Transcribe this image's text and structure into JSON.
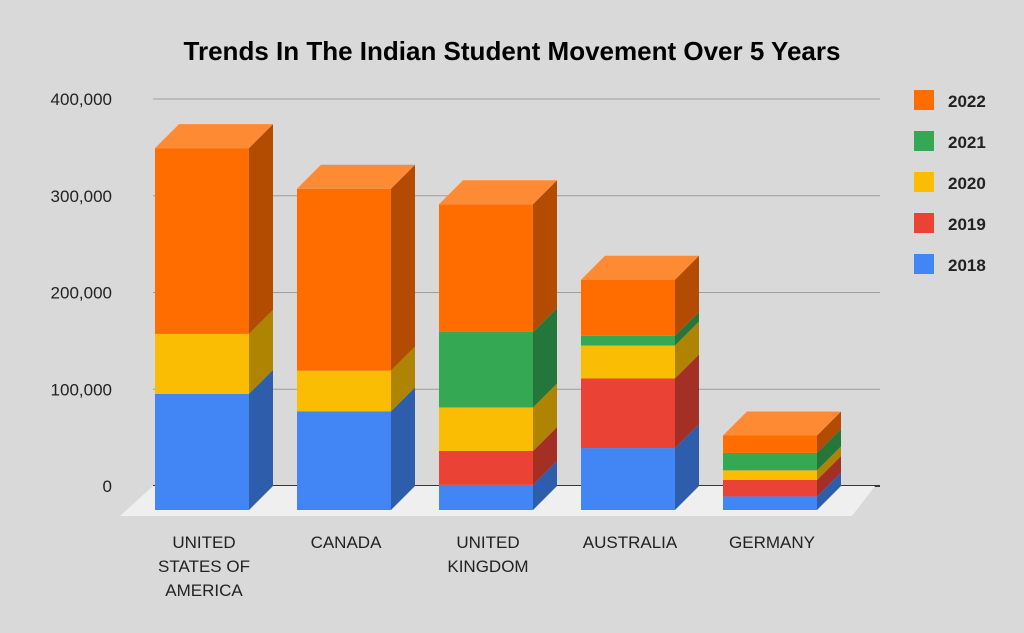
{
  "chart_data": {
    "type": "bar",
    "stacked": true,
    "style": "3d",
    "title": "Trends In The Indian Student Movement Over 5 Years",
    "xlabel": "",
    "ylabel": "",
    "ylim": [
      0,
      400000
    ],
    "yticks": [
      "0",
      "100,000",
      "200,000",
      "300,000",
      "400,000"
    ],
    "ytick_values": [
      0,
      100000,
      200000,
      300000,
      400000
    ],
    "grid": true,
    "legend_position": "right",
    "categories": [
      [
        "UNITED",
        "STATES OF",
        "AMERICA"
      ],
      [
        "CANADA"
      ],
      [
        "UNITED",
        "KINGDOM"
      ],
      [
        "AUSTRALIA"
      ],
      [
        "GERMANY"
      ]
    ],
    "series": [
      {
        "name": "2018",
        "color": "#4285f4",
        "values": [
          120000,
          102000,
          26000,
          64000,
          14000
        ]
      },
      {
        "name": "2019",
        "color": "#ea4335",
        "values": [
          0,
          0,
          35000,
          72000,
          17000
        ]
      },
      {
        "name": "2020",
        "color": "#fbbc04",
        "values": [
          62000,
          42000,
          45000,
          34000,
          10000
        ]
      },
      {
        "name": "2021",
        "color": "#34a853",
        "values": [
          0,
          0,
          78000,
          10000,
          18000
        ]
      },
      {
        "name": "2022",
        "color": "#ff6d01",
        "values": [
          192000,
          188000,
          132000,
          58000,
          18000
        ]
      }
    ],
    "legend_order": [
      "2022",
      "2021",
      "2020",
      "2019",
      "2018"
    ]
  }
}
